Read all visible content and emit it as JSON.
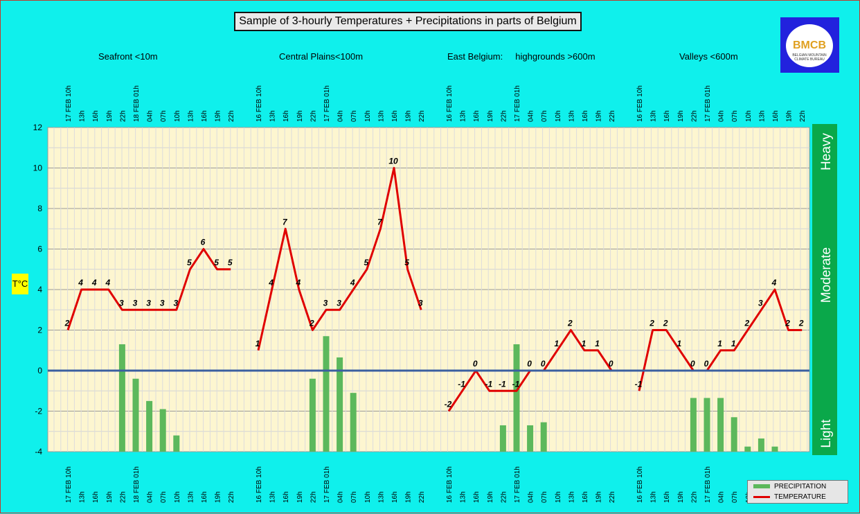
{
  "title": "Sample of 3-hourly Temperatures + Precipitations in parts of Belgium",
  "logo_text": "BMCB",
  "logo_subtext": "BELGIAN MOUNTAIN CLIMATE BUREAU",
  "ylabel": "T°C",
  "legend": {
    "precip": "PRECIPITATION",
    "temp": "TEMPERATURE"
  },
  "intensity_labels": {
    "heavy": "Heavy",
    "moderate": "Moderate",
    "light": "Light"
  },
  "colors": {
    "temperature": "#e00000",
    "precipitation": "#5cb85c",
    "plot_bg": "#fdf6d0",
    "zero_line": "#3a5fa0",
    "intensity_bar": "#0aa84a"
  },
  "regions": [
    {
      "label": "Seafront <10m"
    },
    {
      "label": "Central Plains<100m"
    },
    {
      "label": "East Belgium:     highgrounds >600m"
    },
    {
      "label": "Valleys <600m"
    }
  ],
  "chart_data": {
    "type": "line+bar",
    "ylim": [
      -4,
      12
    ],
    "yticks": [
      -4,
      -2,
      0,
      2,
      4,
      6,
      8,
      10,
      12
    ],
    "grid": true,
    "panels": [
      {
        "name": "Seafront <10m",
        "x": [
          "17 FEB 10h",
          "13h",
          "16h",
          "19h",
          "22h",
          "18 FEB 01h",
          "04h",
          "07h",
          "10h",
          "13h",
          "16h",
          "19h",
          "22h"
        ],
        "temperature": [
          2,
          4,
          4,
          4,
          3,
          3,
          3,
          3,
          3,
          5,
          6,
          5,
          5
        ],
        "precipitation": [
          null,
          null,
          null,
          null,
          1.3,
          -0.4,
          -1.5,
          -1.9,
          -3.2,
          null,
          null,
          null,
          null
        ]
      },
      {
        "name": "Central Plains<100m",
        "x": [
          "16 FEB 10h",
          "13h",
          "16h",
          "19h",
          "22h",
          "17 FEB 01h",
          "04h",
          "07h",
          "10h",
          "13h",
          "16h",
          "19h",
          "22h"
        ],
        "temperature": [
          1,
          4,
          7,
          4,
          2,
          3,
          3,
          4,
          5,
          7,
          10,
          5,
          3
        ],
        "precipitation": [
          null,
          null,
          null,
          null,
          -0.4,
          1.7,
          0.65,
          -1.1,
          null,
          null,
          null,
          null,
          null
        ]
      },
      {
        "name": "East Belgium: highgrounds >600m",
        "x": [
          "16 FEB 10h",
          "13h",
          "16h",
          "19h",
          "22h",
          "17 FEB 01h",
          "04h",
          "07h",
          "10h",
          "13h",
          "16h",
          "19h",
          "22h"
        ],
        "temperature": [
          -2,
          -1,
          0,
          -1,
          -1,
          -1,
          0,
          0,
          1,
          2,
          1,
          1,
          0
        ],
        "precipitation": [
          null,
          null,
          null,
          null,
          -2.7,
          1.3,
          -2.7,
          -2.55,
          null,
          null,
          null,
          null,
          null
        ]
      },
      {
        "name": "Valleys <600m",
        "x": [
          "16 FEB 10h",
          "13h",
          "16h",
          "19h",
          "22h",
          "17 FEB 01h",
          "04h",
          "07h",
          "10h",
          "13h",
          "16h",
          "19h",
          "22h"
        ],
        "temperature": [
          -1,
          2,
          2,
          1,
          0,
          0,
          1,
          1,
          2,
          3,
          4,
          2,
          2
        ],
        "precipitation": [
          null,
          null,
          null,
          null,
          -1.35,
          -1.35,
          -1.35,
          -2.3,
          -3.75,
          -3.35,
          -3.75,
          null,
          null
        ]
      }
    ]
  }
}
